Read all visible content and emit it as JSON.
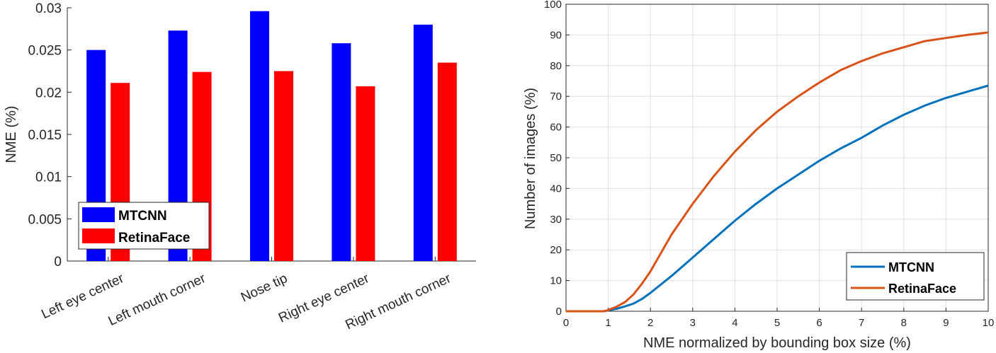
{
  "chart_data": [
    {
      "type": "bar",
      "title": "",
      "xlabel": "",
      "ylabel": "NME (%)",
      "ylim": [
        0,
        0.03
      ],
      "yticks": [
        "0",
        "0.005",
        "0.01",
        "0.015",
        "0.02",
        "0.025",
        "0.03"
      ],
      "categories": [
        "Left eye center",
        "Left mouth corner",
        "Nose tip",
        "Right eye center",
        "Right mouth corner"
      ],
      "series": [
        {
          "name": "MTCNN",
          "color": "#0000ff",
          "values": [
            0.025,
            0.0273,
            0.0296,
            0.0258,
            0.028
          ]
        },
        {
          "name": "RetinaFace",
          "color": "#ff0000",
          "values": [
            0.0211,
            0.0224,
            0.0225,
            0.0207,
            0.0235
          ]
        }
      ],
      "legend": {
        "position": "bottom-left",
        "entries": [
          "MTCNN",
          "RetinaFace"
        ]
      }
    },
    {
      "type": "line",
      "title": "",
      "xlabel": "NME normalized by bounding box size (%)",
      "ylabel": "Number of images (%)",
      "xlim": [
        0,
        10
      ],
      "ylim": [
        0,
        100
      ],
      "xticks": [
        "0",
        "1",
        "2",
        "3",
        "4",
        "5",
        "6",
        "7",
        "8",
        "9",
        "10"
      ],
      "yticks": [
        "0",
        "10",
        "20",
        "30",
        "40",
        "50",
        "60",
        "70",
        "80",
        "90",
        "100"
      ],
      "grid": true,
      "series": [
        {
          "name": "MTCNN",
          "color": "#0072bd",
          "x": [
            0,
            0.5,
            0.9,
            1.0,
            1.2,
            1.4,
            1.6,
            1.8,
            2.0,
            2.5,
            3.0,
            3.5,
            4.0,
            4.5,
            5.0,
            5.5,
            6.0,
            6.5,
            7.0,
            7.5,
            8.0,
            8.5,
            9.0,
            9.5,
            10.0
          ],
          "y": [
            0,
            0,
            0,
            0.3,
            0.8,
            1.6,
            2.5,
            4.0,
            6.0,
            11.5,
            17.5,
            23.5,
            29.5,
            35.0,
            40.0,
            44.5,
            49.0,
            53.0,
            56.5,
            60.5,
            64.0,
            67.0,
            69.5,
            71.5,
            73.5
          ]
        },
        {
          "name": "RetinaFace",
          "color": "#d95319",
          "x": [
            0,
            0.5,
            0.9,
            1.0,
            1.2,
            1.4,
            1.6,
            1.8,
            2.0,
            2.5,
            3.0,
            3.5,
            4.0,
            4.5,
            5.0,
            5.5,
            6.0,
            6.5,
            7.0,
            7.5,
            8.0,
            8.5,
            9.0,
            9.5,
            10.0
          ],
          "y": [
            0,
            0,
            0,
            0.4,
            1.5,
            3.0,
            5.5,
            9.0,
            13.0,
            25.0,
            35.0,
            44.0,
            52.0,
            59.0,
            65.0,
            70.0,
            74.5,
            78.5,
            81.5,
            84.0,
            86.0,
            88.0,
            89.0,
            90.0,
            90.8
          ]
        }
      ],
      "legend": {
        "position": "bottom-right",
        "entries": [
          "MTCNN",
          "RetinaFace"
        ]
      }
    }
  ]
}
